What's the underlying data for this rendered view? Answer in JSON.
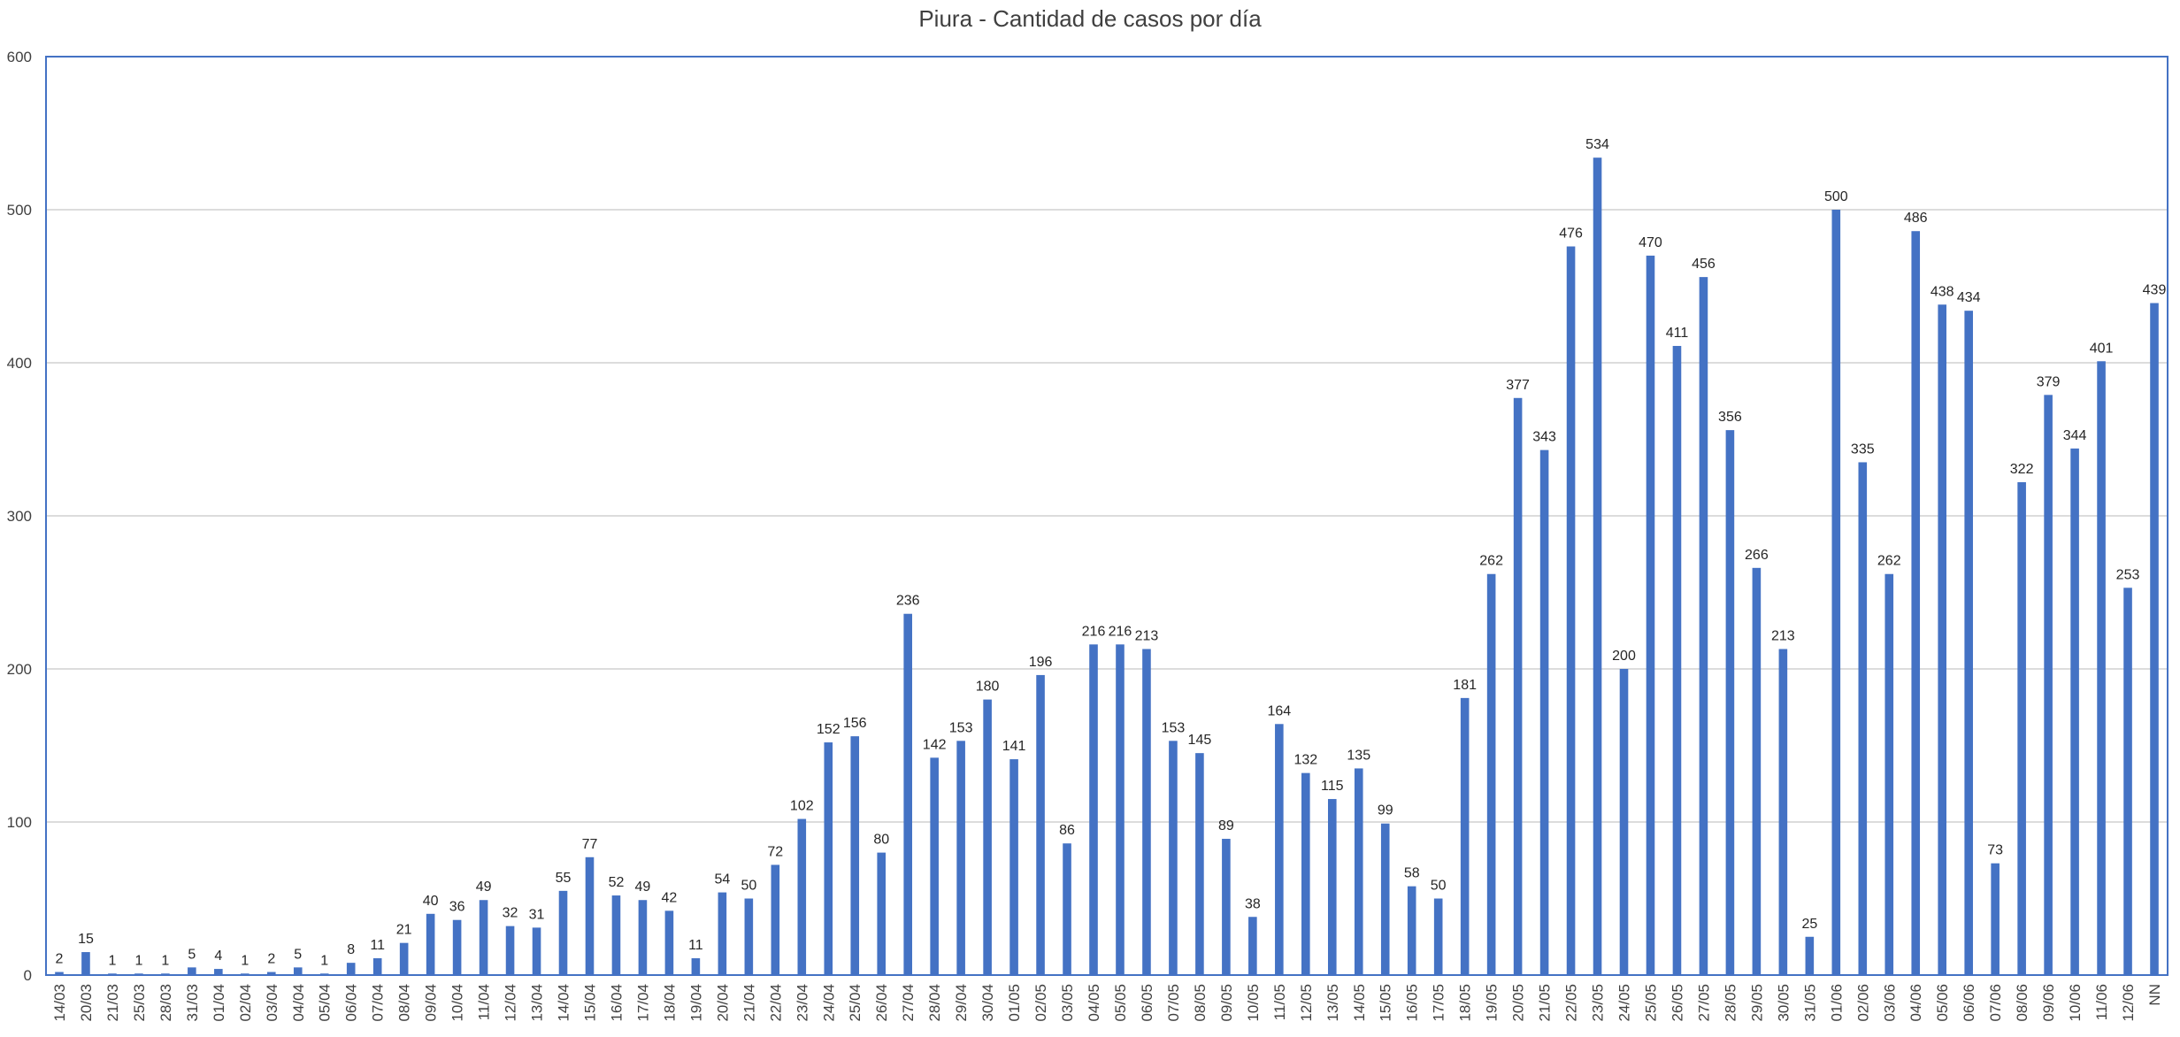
{
  "chart_data": {
    "type": "bar",
    "title": "Piura - Cantidad de casos por día",
    "xlabel": "",
    "ylabel": "",
    "ylim": [
      0,
      600
    ],
    "yticks": [
      0,
      100,
      200,
      300,
      400,
      500,
      600
    ],
    "grid": true,
    "legend": "none",
    "bar_color": "#4472C4",
    "categories": [
      "14/03",
      "20/03",
      "21/03",
      "25/03",
      "28/03",
      "31/03",
      "01/04",
      "02/04",
      "03/04",
      "04/04",
      "05/04",
      "06/04",
      "07/04",
      "08/04",
      "09/04",
      "10/04",
      "11/04",
      "12/04",
      "13/04",
      "14/04",
      "15/04",
      "16/04",
      "17/04",
      "18/04",
      "19/04",
      "20/04",
      "21/04",
      "22/04",
      "23/04",
      "24/04",
      "25/04",
      "26/04",
      "27/04",
      "28/04",
      "29/04",
      "30/04",
      "01/05",
      "02/05",
      "03/05",
      "04/05",
      "05/05",
      "06/05",
      "07/05",
      "08/05",
      "09/05",
      "10/05",
      "11/05",
      "12/05",
      "13/05",
      "14/05",
      "15/05",
      "16/05",
      "17/05",
      "18/05",
      "19/05",
      "20/05",
      "21/05",
      "22/05",
      "23/05",
      "24/05",
      "25/05",
      "26/05",
      "27/05",
      "28/05",
      "29/05",
      "30/05",
      "31/05",
      "01/06",
      "02/06",
      "03/06",
      "04/06",
      "05/06",
      "06/06",
      "07/06",
      "08/06",
      "09/06",
      "10/06",
      "11/06",
      "12/06",
      "NN"
    ],
    "values": [
      2,
      15,
      1,
      1,
      1,
      5,
      4,
      1,
      2,
      5,
      1,
      8,
      11,
      21,
      40,
      36,
      49,
      32,
      31,
      55,
      77,
      52,
      49,
      42,
      11,
      54,
      50,
      72,
      102,
      152,
      156,
      80,
      236,
      142,
      153,
      180,
      141,
      196,
      86,
      216,
      216,
      213,
      153,
      145,
      89,
      38,
      164,
      132,
      115,
      135,
      99,
      58,
      50,
      181,
      262,
      377,
      343,
      476,
      534,
      200,
      470,
      411,
      456,
      356,
      266,
      213,
      25,
      500,
      335,
      262,
      486,
      438,
      434,
      73,
      322,
      379,
      344,
      401,
      253,
      439
    ]
  }
}
